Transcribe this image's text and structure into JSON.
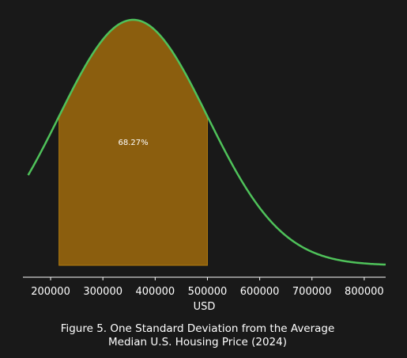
{
  "chart_data": {
    "type": "area",
    "title": "Figure 5. One Standard Deviation from the Average\nMedian U.S. Housing Price (2024)",
    "xlabel": "USD",
    "ylabel": "",
    "x_ticks": [
      200000,
      300000,
      400000,
      500000,
      600000,
      700000,
      800000
    ],
    "x_tick_labels": [
      "200000",
      "300000",
      "400000",
      "500000",
      "600000",
      "700000",
      "800000"
    ],
    "xlim": [
      147000,
      841000
    ],
    "grid": false,
    "y_axis_visible": false,
    "curve": {
      "kind": "normal_pdf",
      "mean": 358000,
      "std": 142000,
      "x_range": [
        157000,
        841000
      ],
      "color": "#4fc25a"
    },
    "shaded_region": {
      "x_range": [
        216000,
        500000
      ],
      "label": "68.27%",
      "fill": "#8b5e0e",
      "edge": "#b07a10"
    },
    "colors": {
      "background": "#191919",
      "text": "#ffffff",
      "axis": "#ffffff"
    }
  }
}
